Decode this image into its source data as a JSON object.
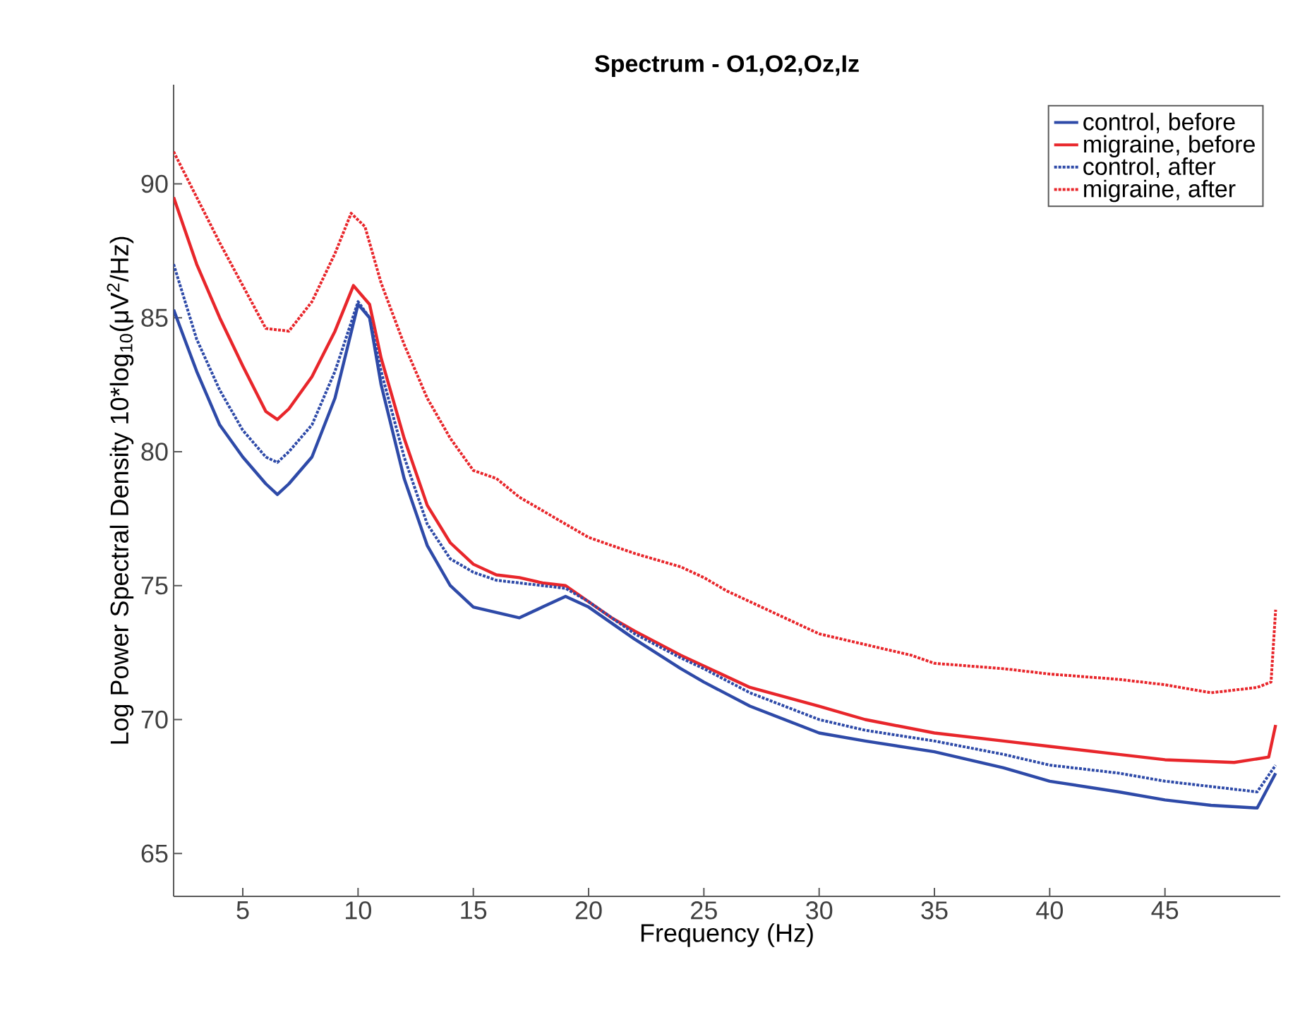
{
  "chart_data": {
    "type": "line",
    "title": "Spectrum - O1,O2,Oz,Iz",
    "xlabel": "Frequency (Hz)",
    "ylabel": "Log Power Spectral Density 10*log$_{10}$(μV$^{2}$/Hz)",
    "xlim": [
      2,
      50
    ],
    "ylim": [
      63.4,
      93.7
    ],
    "xticks": [
      5,
      10,
      15,
      20,
      25,
      30,
      35,
      40,
      45
    ],
    "yticks": [
      65,
      70,
      75,
      80,
      85,
      90
    ],
    "grid": false,
    "legend": "top right",
    "marker": "none",
    "series": [
      {
        "name": "control, before",
        "color": "#2e4aa8",
        "line_style": "solid",
        "x": [
          2,
          3,
          4,
          5,
          6,
          6.5,
          7,
          8,
          9,
          10,
          10.5,
          11,
          12,
          13,
          14,
          15,
          16,
          17,
          18,
          19,
          20,
          21,
          22,
          24,
          25,
          27,
          30,
          32,
          35,
          38,
          40,
          43,
          45,
          47,
          49,
          49.8
        ],
        "values": [
          85.3,
          83,
          81,
          79.8,
          78.8,
          78.4,
          78.8,
          79.8,
          82,
          85.5,
          85,
          82.5,
          79,
          76.5,
          75,
          74.2,
          74,
          73.8,
          74.2,
          74.6,
          74.2,
          73.6,
          73,
          71.9,
          71.4,
          70.5,
          69.5,
          69.2,
          68.8,
          68.2,
          67.7,
          67.3,
          67,
          66.8,
          66.7,
          68
        ]
      },
      {
        "name": "migraine, before",
        "color": "#e8262b",
        "line_style": "solid",
        "x": [
          2,
          3,
          4,
          5,
          6,
          6.5,
          7,
          8,
          9,
          9.8,
          10.5,
          11,
          12,
          13,
          14,
          15,
          16,
          17,
          18,
          19,
          20,
          21,
          22,
          24,
          25,
          27,
          30,
          32,
          35,
          38,
          40,
          43,
          45,
          48,
          49.5,
          49.8
        ],
        "values": [
          89.5,
          87,
          85,
          83.2,
          81.5,
          81.2,
          81.6,
          82.8,
          84.5,
          86.2,
          85.5,
          83.5,
          80.5,
          78,
          76.6,
          75.8,
          75.4,
          75.3,
          75.1,
          75,
          74.4,
          73.8,
          73.3,
          72.4,
          72,
          71.2,
          70.5,
          70,
          69.5,
          69.2,
          69,
          68.7,
          68.5,
          68.4,
          68.6,
          69.8
        ]
      },
      {
        "name": "control, after",
        "color": "#2e4aa8",
        "line_style": "dotted",
        "x": [
          2,
          3,
          4,
          5,
          6,
          6.5,
          7,
          8,
          9,
          10,
          10.5,
          11,
          12,
          13,
          14,
          15,
          16,
          17,
          18,
          19,
          20,
          21,
          22,
          24,
          25,
          27,
          30,
          32,
          35,
          38,
          40,
          43,
          45,
          47,
          49,
          49.8
        ],
        "values": [
          87,
          84.2,
          82.3,
          80.8,
          79.8,
          79.6,
          80,
          81,
          83,
          85.6,
          85,
          83,
          79.8,
          77.3,
          76,
          75.5,
          75.2,
          75.1,
          75,
          74.9,
          74.4,
          73.8,
          73.2,
          72.3,
          71.9,
          71,
          70,
          69.6,
          69.2,
          68.7,
          68.3,
          68,
          67.7,
          67.5,
          67.3,
          68.3
        ]
      },
      {
        "name": "migraine, after",
        "color": "#e8262b",
        "line_style": "dotted",
        "x": [
          2,
          3,
          4,
          5,
          6,
          7,
          8,
          9,
          9.7,
          10.3,
          11,
          12,
          13,
          14,
          15,
          16,
          17,
          18,
          19,
          20,
          22,
          24,
          25,
          26,
          28,
          30,
          32,
          34,
          35,
          38,
          40,
          43,
          45,
          47,
          49,
          49.6,
          49.8
        ],
        "values": [
          91.2,
          89.5,
          87.8,
          86.2,
          84.6,
          84.5,
          85.6,
          87.4,
          88.9,
          88.4,
          86.3,
          84,
          82,
          80.5,
          79.3,
          79,
          78.3,
          77.8,
          77.3,
          76.8,
          76.2,
          75.7,
          75.3,
          74.8,
          74,
          73.2,
          72.8,
          72.4,
          72.1,
          71.9,
          71.7,
          71.5,
          71.3,
          71,
          71.2,
          71.4,
          74.1
        ]
      }
    ]
  }
}
